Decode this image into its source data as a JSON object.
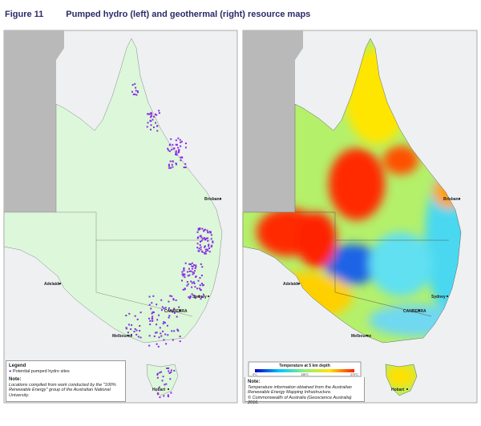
{
  "header": {
    "figure": "Figure 11",
    "title": "Pumped hydro (left) and geothermal (right) resource maps"
  },
  "left_map": {
    "cities": [
      "Brisbane",
      "Sydney",
      "CANBERRA",
      "Adelaide",
      "Melbourne",
      "Hobart"
    ],
    "legend": {
      "title": "Legend",
      "item": "Potential pumped hydro sites"
    },
    "note": {
      "label": "Note:",
      "text": "Locations compiled from work conducted by the \"100% Renewable Energy\" group of the Australian National University."
    }
  },
  "right_map": {
    "cities": [
      "Brisbane",
      "Sydney",
      "CANBERRA",
      "Adelaide",
      "Melbourne",
      "Hobart"
    ],
    "colorbar": {
      "title": "Temperature at 5 km depth",
      "labels": [
        "0°C",
        "135°C",
        "270°C"
      ]
    },
    "note": {
      "label": "Note:",
      "lines": [
        "Temperature information obtained from the Australian Renewable Energy Mapping Infrastructure.",
        "© Commonwealth of Australia (Geoscience Australia) 2016."
      ]
    }
  }
}
